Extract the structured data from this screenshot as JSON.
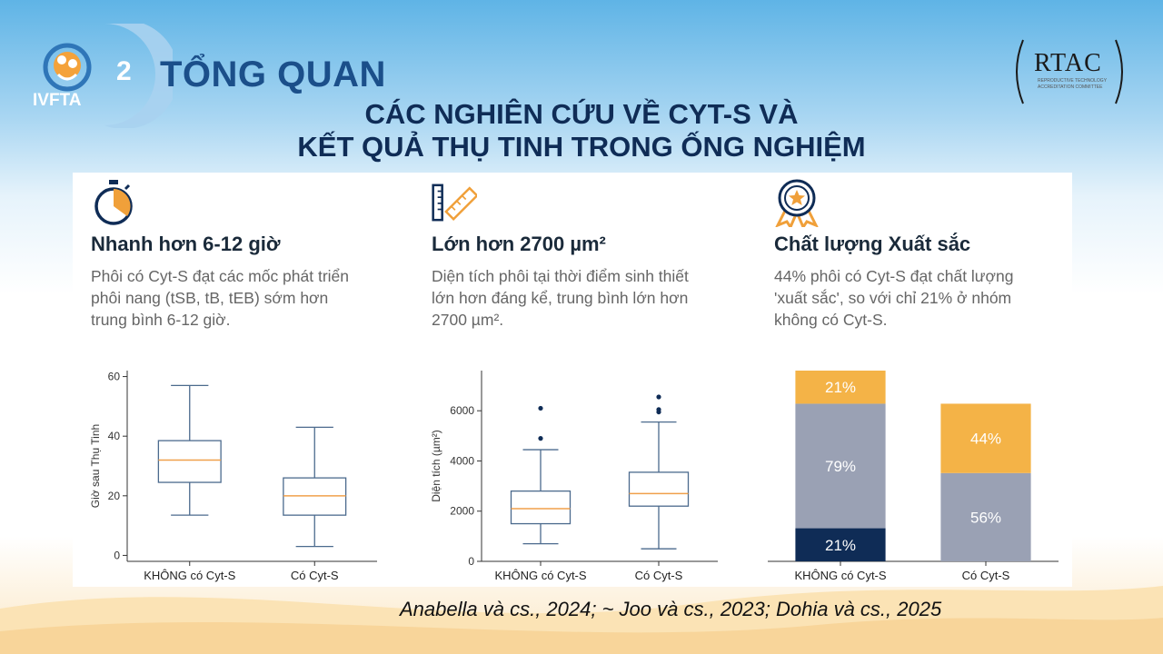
{
  "header": {
    "logo_text": "IVFTA",
    "section_number": "2",
    "section_title": "TỔNG QUAN",
    "subtitle_line1": "CÁC NGHIÊN CỨU VỀ CYT-S VÀ",
    "subtitle_line2": "KẾT QUẢ THỤ TINH TRONG ỐNG NGHIỆM",
    "rtac_name": "RTAC",
    "rtac_subtitle": "REPRODUCTIVE TECHNOLOGY ACCREDITATION COMMITTEE"
  },
  "columns": [
    {
      "icon": "stopwatch-icon",
      "heading": "Nhanh hơn 6-12 giờ",
      "lines": [
        "Phôi có Cyt-S đạt các mốc phát triển",
        "phôi nang (tSB, tB, tEB) sớm hơn",
        "trung bình 6-12 giờ."
      ]
    },
    {
      "icon": "ruler-icon",
      "heading": "Lớn hơn 2700 µm²",
      "lines": [
        "Diện tích phôi tại thời điểm sinh thiết",
        "lớn hơn đáng kể, trung bình lớn hơn",
        "2700 µm²."
      ]
    },
    {
      "icon": "award-medal-icon",
      "heading": "Chất lượng Xuất sắc",
      "lines": [
        "44% phôi có Cyt-S đạt chất lượng",
        "'xuất sắc', so với chỉ 21% ở nhóm",
        "không có Cyt-S."
      ]
    }
  ],
  "chart_data": [
    {
      "type": "boxplot",
      "ylabel": "Giờ sau Thụ Tinh",
      "ylim": [
        -2,
        62
      ],
      "yticks": [
        0,
        20,
        40,
        60
      ],
      "categories": [
        "KHÔNG có Cyt-S",
        "Có Cyt-S"
      ],
      "boxes": [
        {
          "whisker_low": 13.5,
          "q1": 24.5,
          "median": 32,
          "q3": 38.5,
          "whisker_high": 57,
          "outliers": []
        },
        {
          "whisker_low": 3,
          "q1": 13.5,
          "median": 20,
          "q3": 26,
          "whisker_high": 43,
          "outliers": []
        }
      ],
      "colors": {
        "box": "#4b6a8d",
        "median": "#f0a04b"
      }
    },
    {
      "type": "boxplot",
      "ylabel": "Diện tích (µm²)",
      "ylim": [
        0,
        7600
      ],
      "yticks": [
        0,
        2000,
        4000,
        6000
      ],
      "categories": [
        "KHÔNG có Cyt-S",
        "Có Cyt-S"
      ],
      "boxes": [
        {
          "whisker_low": 700,
          "q1": 1500,
          "median": 2100,
          "q3": 2800,
          "whisker_high": 4450,
          "outliers": [
            4900,
            6100
          ]
        },
        {
          "whisker_low": 500,
          "q1": 2200,
          "median": 2700,
          "q3": 3550,
          "whisker_high": 5550,
          "outliers": [
            5950,
            6050,
            6550
          ]
        }
      ],
      "colors": {
        "box": "#4b6a8d",
        "median": "#f0a04b",
        "outlier": "#0f2c56"
      }
    },
    {
      "type": "bar",
      "stacked": true,
      "categories": [
        "KHÔNG có Cyt-S",
        "Có Cyt-S"
      ],
      "bars": [
        {
          "segments": [
            {
              "value": 21,
              "label": "21%",
              "color": "#0f2c56"
            },
            {
              "value": 79,
              "label": "79%",
              "color": "#9aa1b4"
            },
            {
              "value": 21,
              "label": "21%",
              "color": "#f4b347"
            }
          ]
        },
        {
          "segments": [
            {
              "value": 56,
              "label": "56%",
              "color": "#9aa1b4"
            },
            {
              "value": 44,
              "label": "44%",
              "color": "#f4b347"
            }
          ]
        }
      ],
      "ylim": [
        0,
        121
      ]
    }
  ],
  "citation": "Anabella và cs., 2024; ~ Joo và cs., 2023; Dohia và cs., 2025"
}
